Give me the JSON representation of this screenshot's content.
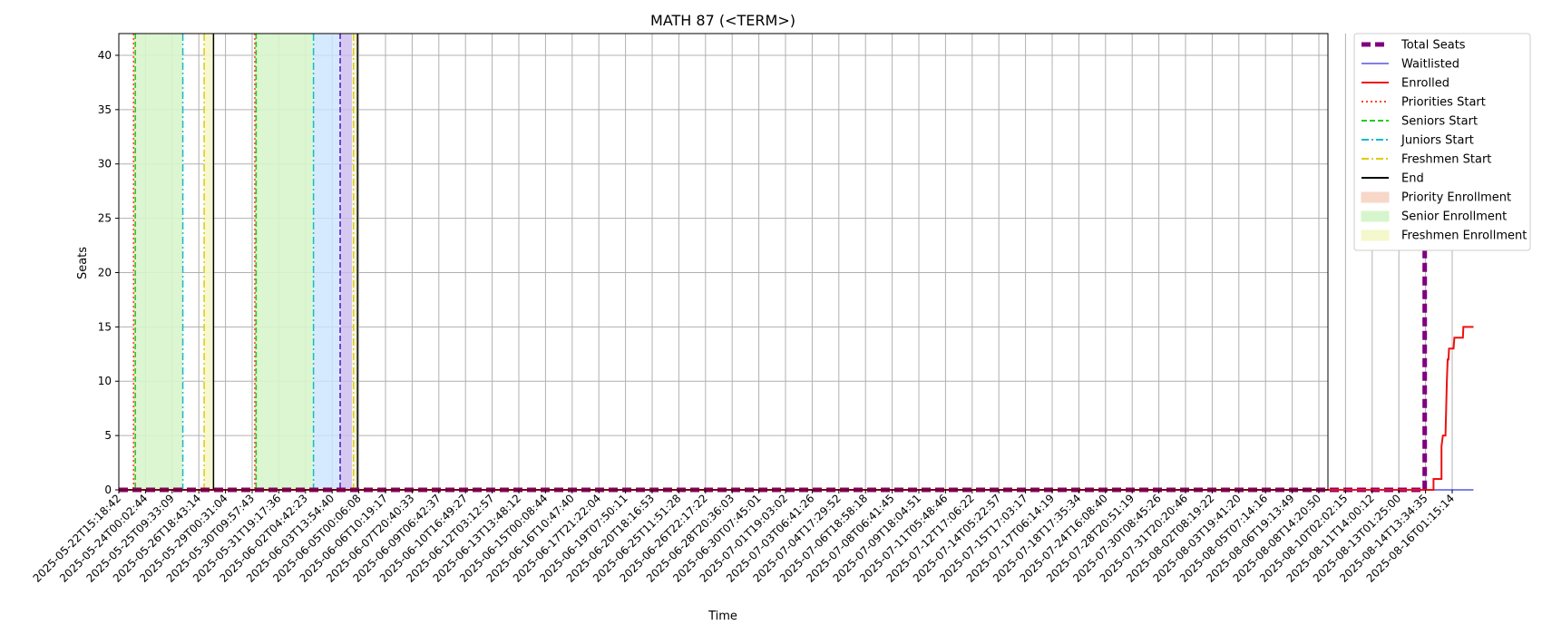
{
  "chart_data": {
    "type": "line",
    "title": "MATH 87 (<TERM>)",
    "xlabel": "Time",
    "ylabel": "Seats",
    "ylim": [
      0,
      42
    ],
    "yticks": [
      0,
      5,
      10,
      15,
      20,
      25,
      30,
      35,
      40
    ],
    "grid": true,
    "legend_position": "outside-right-top",
    "x_tick_labels": [
      "2025-05-22T15:18:42",
      "2025-05-24T00:02:44",
      "2025-05-25T09:33:09",
      "2025-05-26T18:43:14",
      "2025-05-29T00:31:04",
      "2025-05-30T09:57:43",
      "2025-05-31T19:17:36",
      "2025-06-02T04:42:23",
      "2025-06-03T13:54:40",
      "2025-06-05T00:06:08",
      "2025-06-06T10:19:17",
      "2025-06-07T20:40:33",
      "2025-06-09T06:42:37",
      "2025-06-10T16:49:27",
      "2025-06-12T03:12:57",
      "2025-06-13T13:48:12",
      "2025-06-15T00:08:44",
      "2025-06-16T10:47:40",
      "2025-06-17T21:22:04",
      "2025-06-19T07:50:11",
      "2025-06-20T18:16:53",
      "2025-06-25T11:51:28",
      "2025-06-26T22:17:22",
      "2025-06-28T20:36:03",
      "2025-06-30T07:45:01",
      "2025-07-01T19:03:02",
      "2025-07-03T06:41:26",
      "2025-07-04T17:29:52",
      "2025-07-06T18:58:18",
      "2025-07-08T06:41:45",
      "2025-07-09T18:04:51",
      "2025-07-11T05:48:46",
      "2025-07-12T17:06:22",
      "2025-07-14T05:22:57",
      "2025-07-15T17:03:17",
      "2025-07-17T06:14:19",
      "2025-07-18T17:35:34",
      "2025-07-24T16:08:40",
      "2025-07-28T20:51:19",
      "2025-07-30T08:45:26",
      "2025-07-31T20:20:46",
      "2025-08-02T08:19:22",
      "2025-08-03T19:41:20",
      "2025-08-05T07:14:16",
      "2025-08-06T19:13:49",
      "2025-08-08T14:20:50",
      "2025-08-10T02:02:15",
      "2025-08-11T14:00:12",
      "2025-08-13T01:25:00",
      "2025-08-14T13:34:35",
      "2025-08-16T01:15:14"
    ],
    "series": [
      {
        "name": "Total Seats",
        "color": "#800080",
        "style": "dashed-thick",
        "points": [
          [
            0,
            0
          ],
          [
            48.97,
            0
          ],
          [
            48.97,
            40
          ],
          [
            50.8,
            40
          ]
        ]
      },
      {
        "name": "Waitlisted",
        "color": "#3333dd",
        "style": "solid-thin",
        "points": [
          [
            0,
            0
          ],
          [
            50.8,
            0
          ]
        ]
      },
      {
        "name": "Enrolled",
        "color": "#ee1111",
        "style": "solid",
        "points": [
          [
            0,
            0
          ],
          [
            49.3,
            0
          ],
          [
            49.3,
            1
          ],
          [
            49.6,
            1
          ],
          [
            49.6,
            4
          ],
          [
            49.65,
            5
          ],
          [
            49.75,
            5
          ],
          [
            49.8,
            10
          ],
          [
            49.83,
            12
          ],
          [
            49.86,
            12
          ],
          [
            49.88,
            13
          ],
          [
            50.05,
            13
          ],
          [
            50.08,
            14
          ],
          [
            50.4,
            14
          ],
          [
            50.42,
            15
          ],
          [
            50.8,
            15
          ]
        ]
      }
    ],
    "enrollment_periods": [
      {
        "priorities_start": 0.55,
        "seniors_start": 0.62,
        "juniors_start": 2.4,
        "freshmen_start": 3.2,
        "end": 3.55,
        "priority_enrollment": [
          0.55,
          0.62
        ],
        "senior_enrollment": [
          0.62,
          2.4
        ],
        "freshmen_enrollment": [
          3.2,
          3.55
        ]
      },
      {
        "priorities_start": 5.1,
        "seniors_start": 5.15,
        "juniors_start": 7.3,
        "freshmen_start": 8.8,
        "end": 8.95,
        "priority_enrollment": [
          5.1,
          5.15
        ],
        "senior_enrollment": [
          5.15,
          7.3
        ],
        "freshmen_enrollment": [
          8.8,
          8.95
        ]
      }
    ],
    "waitlist_marker": {
      "at": 8.3,
      "band": [
        8.3,
        8.75
      ],
      "band_color": "#ccbbee",
      "color": "#5511cc"
    },
    "juniors_band": {
      "range": [
        7.3,
        8.3
      ],
      "color": "#cce5ff"
    },
    "legend": [
      {
        "label": "Total Seats",
        "kind": "line",
        "color": "#800080",
        "style": "dashed-thick"
      },
      {
        "label": "Waitlisted",
        "kind": "line",
        "color": "#3333dd",
        "style": "solid-thin"
      },
      {
        "label": "Enrolled",
        "kind": "line",
        "color": "#ee1111",
        "style": "solid"
      },
      {
        "label": "Priorities Start",
        "kind": "line",
        "color": "#ff4422",
        "style": "dotted"
      },
      {
        "label": "Seniors Start",
        "kind": "line",
        "color": "#22cc22",
        "style": "dashed"
      },
      {
        "label": "Juniors Start",
        "kind": "line",
        "color": "#11bbcc",
        "style": "dashdot"
      },
      {
        "label": "Freshmen Start",
        "kind": "line",
        "color": "#ddcc00",
        "style": "dashdot"
      },
      {
        "label": "End",
        "kind": "line",
        "color": "#000000",
        "style": "solid"
      },
      {
        "label": "Priority Enrollment",
        "kind": "patch",
        "color": "#f7d7c8"
      },
      {
        "label": "Senior Enrollment",
        "kind": "patch",
        "color": "#d7f5cc"
      },
      {
        "label": "Freshmen Enrollment",
        "kind": "patch",
        "color": "#f5f7cc"
      }
    ]
  }
}
